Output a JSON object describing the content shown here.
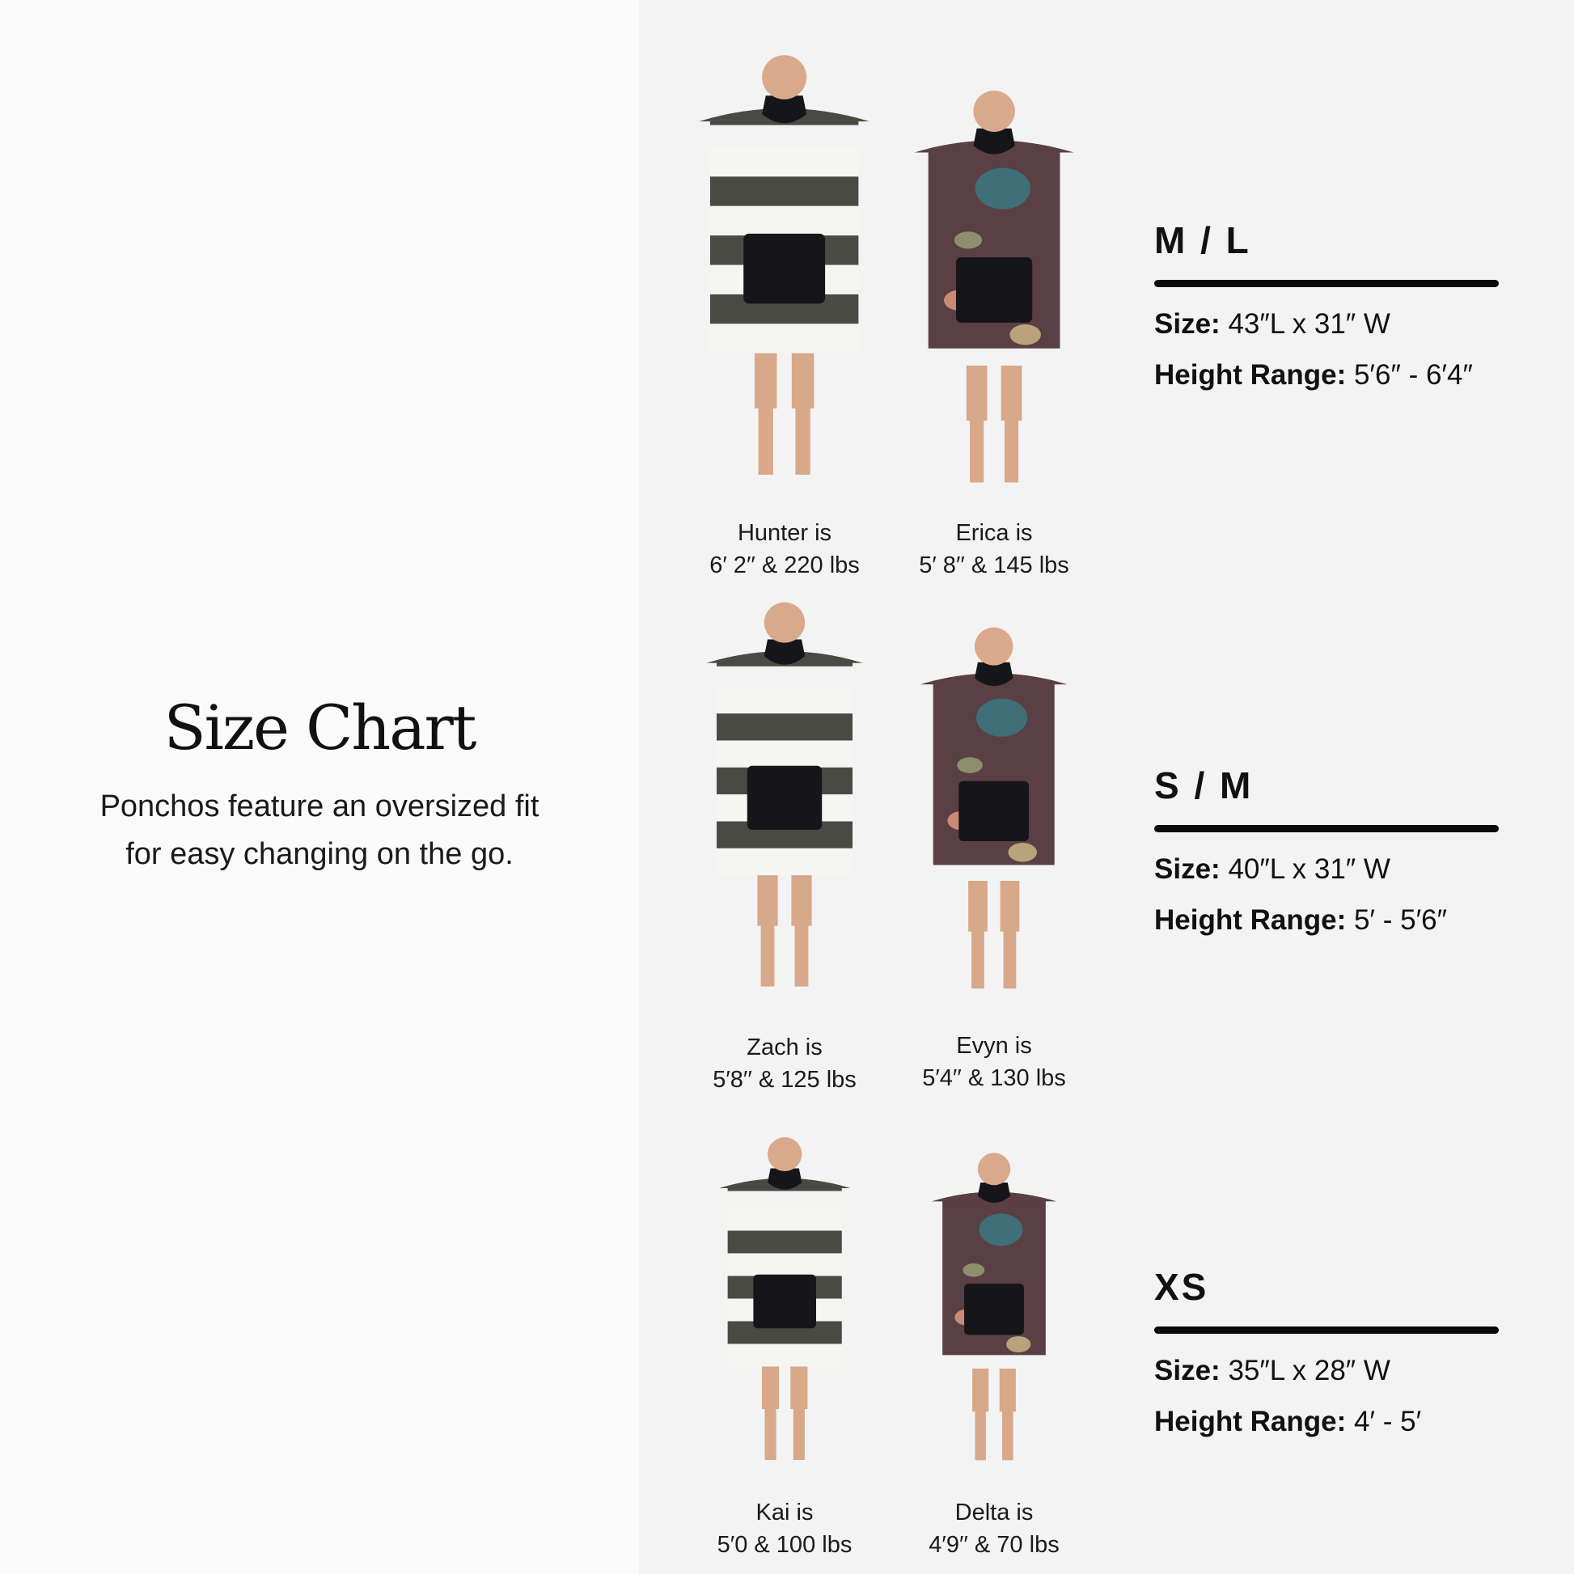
{
  "intro": {
    "title": "Size Chart",
    "subtitle_line1": "Ponchos feature an oversized fit",
    "subtitle_line2": "for easy changing on the go."
  },
  "models": [
    {
      "name": "Hunter is",
      "stats": "6′ 2′′ & 220 lbs",
      "pattern": "stripe"
    },
    {
      "name": "Erica is",
      "stats": "5′ 8′′ & 145 lbs",
      "pattern": "floral"
    },
    {
      "name": "Zach is",
      "stats": "5′8′′ & 125 lbs",
      "pattern": "stripe"
    },
    {
      "name": "Evyn is",
      "stats": "5′4′′ & 130 lbs",
      "pattern": "floral"
    },
    {
      "name": "Kai is",
      "stats": "5′0 & 100 lbs",
      "pattern": "stripe"
    },
    {
      "name": "Delta is",
      "stats": "4′9′′ & 70 lbs",
      "pattern": "floral"
    }
  ],
  "sizes": [
    {
      "label": "M / L",
      "size_label": "Size:",
      "size_value": "43″L x 31″ W",
      "height_label": "Height Range:",
      "height_value": "5′6″ - 6′4″"
    },
    {
      "label": "S / M",
      "size_label": "Size:",
      "size_value": "40″L x 31″ W",
      "height_label": "Height Range:",
      "height_value": "5′ - 5′6″"
    },
    {
      "label": "XS",
      "size_label": "Size:",
      "size_value": "35″L x 28″ W",
      "height_label": "Height Range:",
      "height_value": "4′ - 5′"
    }
  ],
  "colors": {
    "left_bg": "#fafafa",
    "right_bg": "#f3f3f3",
    "stripe_dark": "#4a4a44",
    "stripe_light": "#f5f5f2",
    "floral": "#5a3f45",
    "pocket": "#16161a",
    "bar": "#0a0a0a"
  }
}
